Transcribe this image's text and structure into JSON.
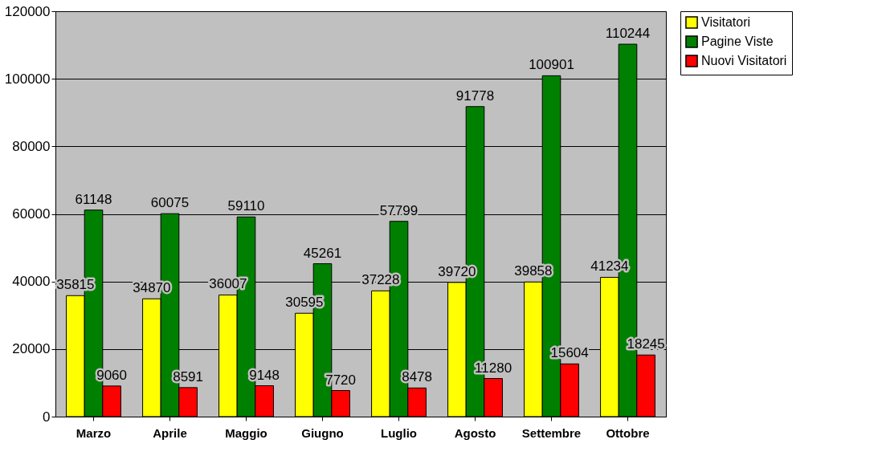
{
  "chart_data": {
    "type": "bar",
    "categories": [
      "Marzo",
      "Aprile",
      "Maggio",
      "Giugno",
      "Luglio",
      "Agosto",
      "Settembre",
      "Ottobre"
    ],
    "series": [
      {
        "name": "Visitatori",
        "color": "#ffff00",
        "values": [
          35815,
          34870,
          36007,
          30595,
          37228,
          39720,
          39858,
          41234
        ]
      },
      {
        "name": "Pagine Viste",
        "color": "#008000",
        "values": [
          61148,
          60075,
          59110,
          45261,
          57799,
          91778,
          100901,
          110244
        ]
      },
      {
        "name": "Nuovi Visitatori",
        "color": "#ff0000",
        "values": [
          9060,
          8591,
          9148,
          7720,
          8478,
          11280,
          15604,
          18245
        ]
      }
    ],
    "ylim": [
      0,
      120000
    ],
    "yticks": [
      0,
      20000,
      40000,
      60000,
      80000,
      100000,
      120000
    ],
    "grid": "y",
    "legend": "right",
    "data_labels": true
  }
}
